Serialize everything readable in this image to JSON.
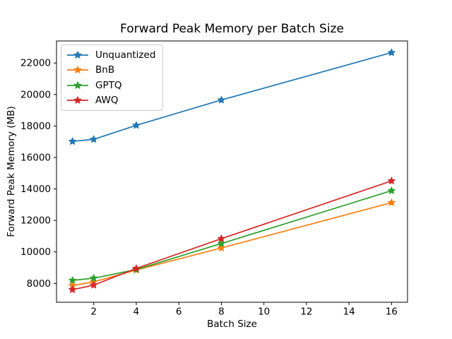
{
  "title": "Forward Peak Memory per Batch Size",
  "xlabel": "Batch Size",
  "ylabel": "Forward Peak Memory (MB)",
  "chart_data": {
    "type": "line",
    "x": [
      1,
      2,
      4,
      8,
      16
    ],
    "series": [
      {
        "name": "Unquantized",
        "color": "#1f77b4",
        "values": [
          17020,
          17150,
          18040,
          19650,
          22660
        ]
      },
      {
        "name": "BnB",
        "color": "#ff7f0e",
        "values": [
          7860,
          8100,
          8850,
          10250,
          13130
        ]
      },
      {
        "name": "GPTQ",
        "color": "#2ca02c",
        "values": [
          8190,
          8330,
          8880,
          10530,
          13890
        ]
      },
      {
        "name": "AWQ",
        "color": "#d62728",
        "values": [
          7600,
          7890,
          8950,
          10840,
          14510
        ]
      }
    ],
    "title": "Forward Peak Memory per Batch Size",
    "xlabel": "Batch Size",
    "ylabel": "Forward Peak Memory (MB)",
    "xlim": [
      0.25,
      16.75
    ],
    "ylim": [
      6800,
      23400
    ],
    "xticks": [
      2,
      4,
      6,
      8,
      10,
      12,
      14,
      16
    ],
    "yticks": [
      8000,
      10000,
      12000,
      14000,
      16000,
      18000,
      20000,
      22000
    ],
    "marker": "star",
    "grid": false,
    "legend_position": "upper-left",
    "axis_color": "#000000",
    "background_color": "#ffffff"
  }
}
